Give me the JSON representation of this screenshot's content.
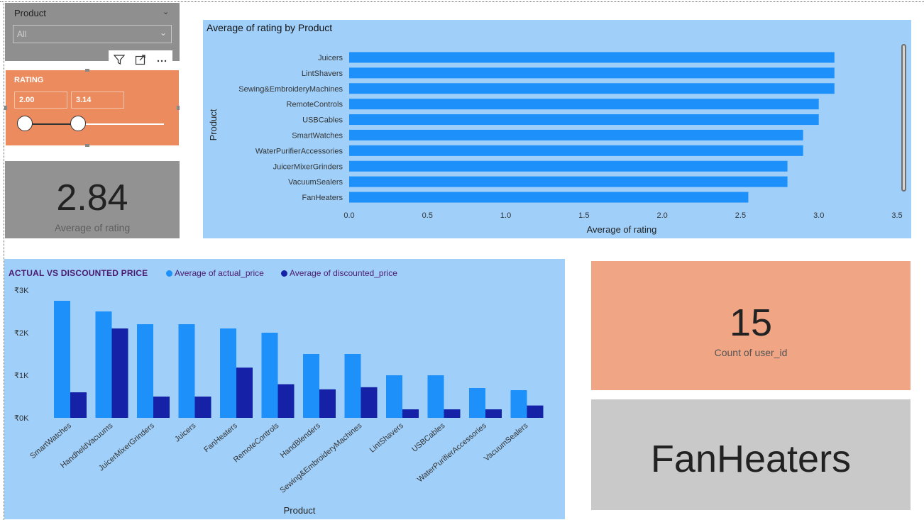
{
  "slicer_product": {
    "title": "Product",
    "selected": "All"
  },
  "visual_header": {
    "icons": [
      "filter-icon",
      "focus-mode-icon",
      "more-options-icon"
    ]
  },
  "slicer_rating": {
    "title": "RATING",
    "min_value": "2.00",
    "max_value": "3.14",
    "range_min": 2.0,
    "range_max": 3.14
  },
  "card_avg_rating": {
    "value": "2.84",
    "label": "Average of rating"
  },
  "card_count": {
    "value": "15",
    "label": "Count of user_id"
  },
  "card_product": {
    "value": "FanHeaters"
  },
  "colors": {
    "bar_blue": "#1e90fa",
    "actual_price": "#1e90fa",
    "discounted_price": "#1521a6",
    "chart_bg": "#a0d0fa",
    "slicer_orange": "#eb8b5e",
    "title_purple": "#4b1a6e"
  },
  "chart_data": [
    {
      "type": "bar",
      "orientation": "horizontal",
      "title": "Average of rating by Product",
      "xlabel": "Average of rating",
      "ylabel": "Product",
      "categories": [
        "Juicers",
        "LintShavers",
        "Sewing&EmbroideryMachines",
        "RemoteControls",
        "USBCables",
        "SmartWatches",
        "WaterPurifierAccessories",
        "JuicerMixerGrinders",
        "VacuumSealers",
        "FanHeaters"
      ],
      "values": [
        3.1,
        3.1,
        3.1,
        3.0,
        3.0,
        2.9,
        2.9,
        2.8,
        2.8,
        2.55
      ],
      "xlim": [
        0,
        3.5
      ],
      "xticks": [
        "0.0",
        "0.5",
        "1.0",
        "1.5",
        "2.0",
        "2.5",
        "3.0",
        "3.5"
      ],
      "grid": false
    },
    {
      "type": "bar",
      "title": "ACTUAL VS  DISCOUNTED PRICE",
      "xlabel": "Product",
      "ylabel": "",
      "categories": [
        "SmartWatches",
        "HandheldVacuums",
        "JuicerMixerGrinders",
        "Juicers",
        "FanHeaters",
        "RemoteControls",
        "HandBlenders",
        "Sewing&EmbroideryMachines",
        "LintShavers",
        "USBCables",
        "WaterPurifierAccessories",
        "VacuumSealers"
      ],
      "series": [
        {
          "name": "Average of actual_price",
          "values": [
            2750,
            2500,
            2200,
            2200,
            2100,
            2000,
            1500,
            1500,
            1000,
            1000,
            700,
            650
          ]
        },
        {
          "name": "Average of discounted_price",
          "values": [
            600,
            2100,
            500,
            500,
            1180,
            790,
            670,
            720,
            200,
            200,
            200,
            290
          ]
        }
      ],
      "ylim": [
        0,
        3000
      ],
      "yticks": [
        "₹0K",
        "₹1K",
        "₹2K",
        "₹3K"
      ],
      "legend": "top-left",
      "grid": false
    }
  ]
}
